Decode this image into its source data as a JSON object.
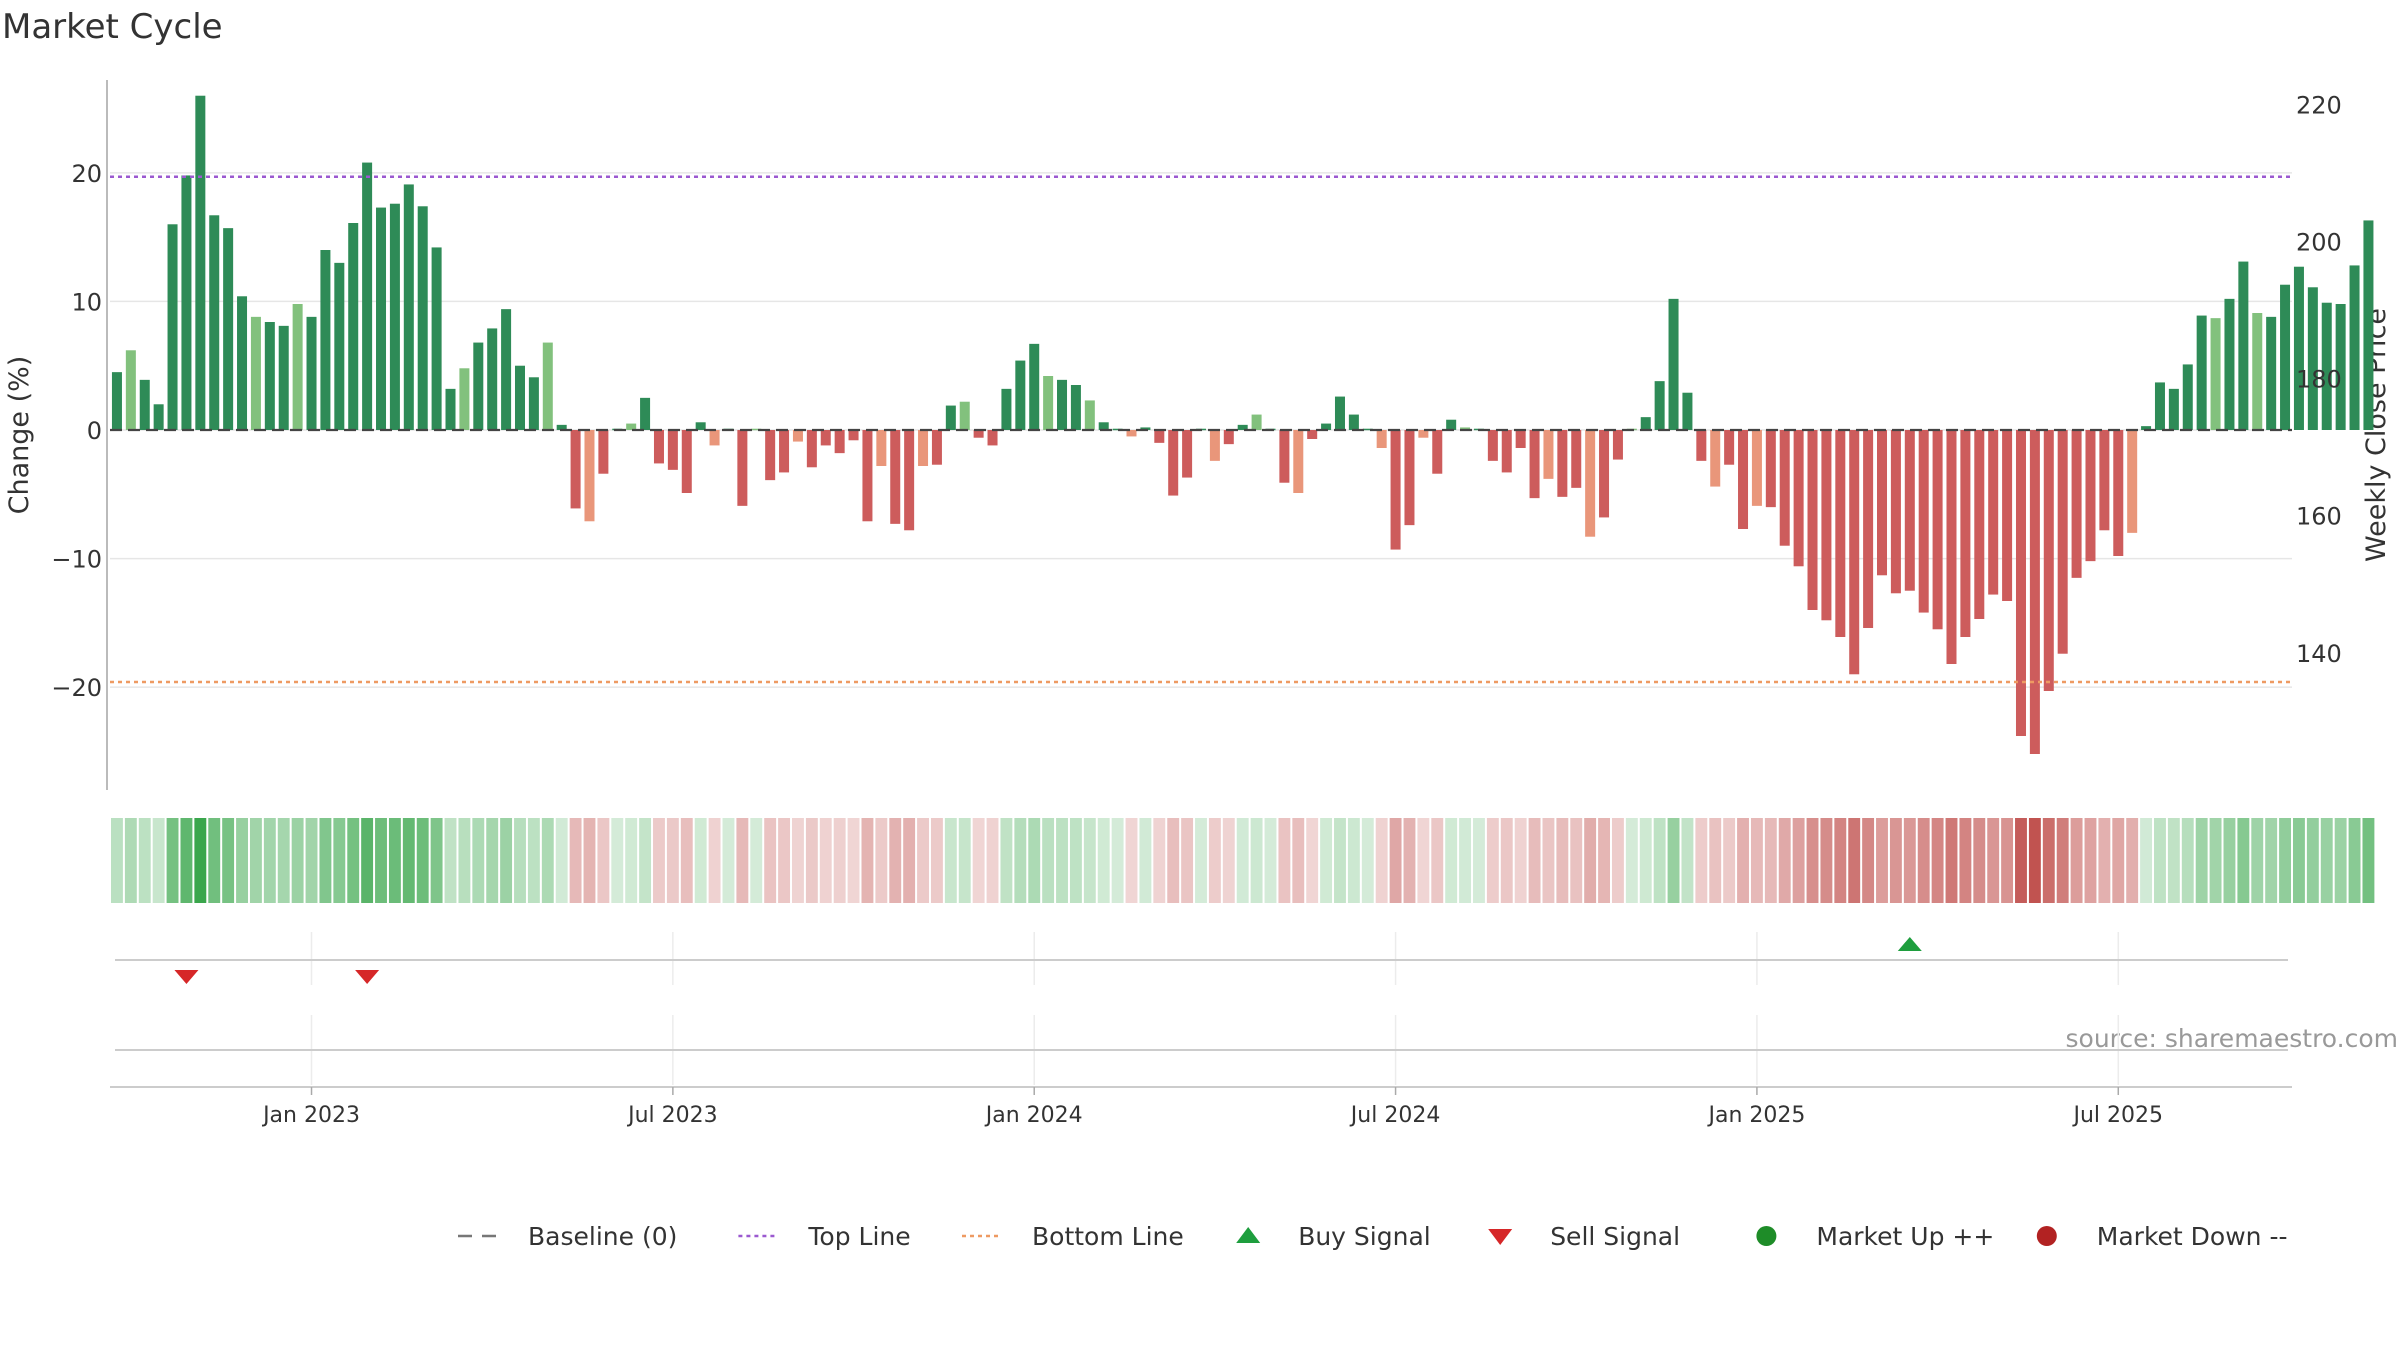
{
  "chart_data": {
    "type": "bar",
    "title": "Market Cycle",
    "ylabel": "Change (%)",
    "y2label": "Weekly Close Price",
    "ylim": [
      -28,
      28
    ],
    "y2lim": [
      120,
      225
    ],
    "yticks": [
      20,
      10,
      0,
      -10,
      -20
    ],
    "ytick_labels": [
      "20",
      "10",
      "0",
      "−10",
      "−20"
    ],
    "y2ticks": [
      220,
      200,
      180,
      160,
      140
    ],
    "y2tick_labels": [
      "220",
      "200",
      "180",
      "160",
      "140"
    ],
    "xrange": [
      0,
      157
    ],
    "xticks": [
      14.5,
      40.5,
      66.5,
      92.5,
      118.5,
      144.5
    ],
    "xtick_labels": [
      "Jan 2023",
      "Jul 2023",
      "Jan 2024",
      "Jul 2024",
      "Jan 2025",
      "Jul 2025"
    ],
    "top_line": 19.7,
    "bottom_line": -19.6,
    "values": [
      4.5,
      6.2,
      3.9,
      2,
      16,
      19.8,
      26,
      16.7,
      15.7,
      10.4,
      8.8,
      8.4,
      8.1,
      9.8,
      8.8,
      14,
      13,
      16.1,
      20.8,
      17.3,
      17.6,
      19.1,
      17.4,
      14.2,
      3.2,
      4.8,
      6.8,
      7.9,
      9.4,
      5,
      4.1,
      6.8,
      0.4,
      -6.1,
      -7.1,
      -3.4,
      0.1,
      0.5,
      2.5,
      -2.6,
      -3.1,
      -4.9,
      0.6,
      -1.2,
      0.1,
      -5.9,
      0.1,
      -3.9,
      -3.3,
      -0.9,
      -2.9,
      -1.2,
      -1.8,
      -0.8,
      -7.1,
      -2.8,
      -7.3,
      -7.8,
      -2.8,
      -2.7,
      1.9,
      2.2,
      -0.6,
      -1.2,
      3.2,
      5.4,
      6.7,
      4.2,
      3.9,
      3.5,
      2.3,
      0.6,
      0.1,
      -0.5,
      0.2,
      -1,
      -5.1,
      -3.7,
      0.1,
      -2.4,
      -1.1,
      0.4,
      1.2,
      0.1,
      -4.1,
      -4.9,
      -0.7,
      0.5,
      2.6,
      1.2,
      0.1,
      -1.4,
      -9.3,
      -7.4,
      -0.6,
      -3.4,
      0.8,
      0.2,
      0.1,
      -2.4,
      -3.3,
      -1.4,
      -5.3,
      -3.8,
      -5.2,
      -4.5,
      -8.3,
      -6.8,
      -2.3,
      0.1,
      1,
      3.8,
      10.2,
      2.9,
      -2.4,
      -4.4,
      -2.7,
      -7.7,
      -5.9,
      -6,
      -9,
      -10.6,
      -14,
      -14.8,
      -16.1,
      -19,
      -15.4,
      -11.3,
      -12.7,
      -12.5,
      -14.2,
      -15.5,
      -18.2,
      -16.1,
      -14.7,
      -12.8,
      -13.3,
      -23.8,
      -25.2,
      -20.3,
      -17.4,
      -11.5,
      -10.2,
      -7.8,
      -9.8,
      -8,
      0.3,
      3.7,
      3.2,
      5.1,
      8.9,
      8.7,
      10.2,
      13.1,
      9.1,
      8.8,
      11.3,
      12.7,
      11.1,
      9.9,
      9.8,
      12.8,
      16.3
    ],
    "buy_signals": [
      [
        "2025-04",
        129
      ]
    ],
    "sell_signals": [
      [
        "2022-11",
        5
      ],
      [
        "2023-02",
        18
      ]
    ],
    "watermark": "source: sharemaestro.com",
    "legend_position": "bottom-center",
    "legend": [
      {
        "label": "Baseline (0)",
        "marker": "dash-line",
        "color": "#777777"
      },
      {
        "label": "Top Line",
        "marker": "dotted-line",
        "color": "#9b59d0"
      },
      {
        "label": "Bottom Line",
        "marker": "dotted-line",
        "color": "#ee9a62"
      },
      {
        "label": "Buy Signal",
        "marker": "triangle-up",
        "color": "#1e9e3e"
      },
      {
        "label": "Sell Signal",
        "marker": "triangle-down",
        "color": "#d62728"
      },
      {
        "label": "Market Up ++",
        "marker": "circle",
        "color": "#1e8c28"
      },
      {
        "label": "Market Down --",
        "marker": "circle",
        "color": "#b22222"
      }
    ],
    "colors": {
      "bar_up_strong": "#2e8b57",
      "bar_up_weak": "#82c17d",
      "bar_down_strong": "#cd5c5c",
      "bar_down_weak": "#e9967a",
      "heat_pos": "#3aa64c",
      "heat_neg": "#c0504d",
      "grid": "#e6e6e6",
      "axis": "#bbbbbb"
    }
  }
}
